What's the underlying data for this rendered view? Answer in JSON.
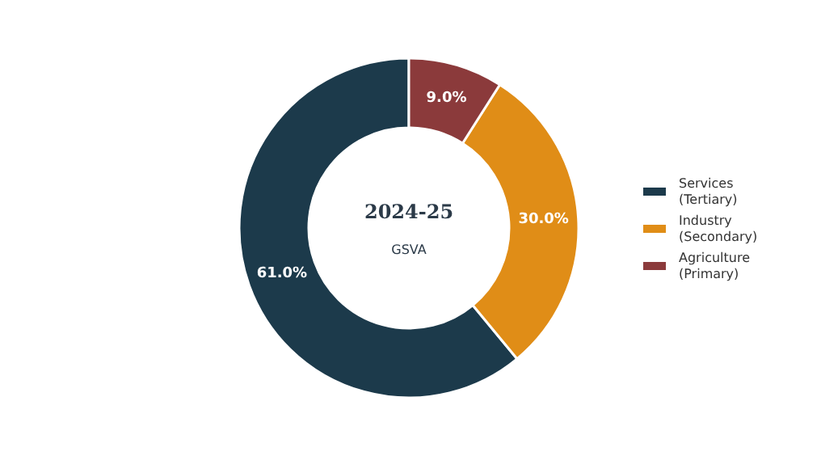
{
  "chart_data": {
    "type": "donut",
    "title": "2024-25",
    "subtitle": "GSVA",
    "categories": [
      "Services\n(Tertiary)",
      "Industry\n(Secondary)",
      "Agriculture\n(Primary)"
    ],
    "values": [
      61.0,
      30.0,
      9.0
    ],
    "colors": [
      "#1c3a4b",
      "#e08d17",
      "#8b3a3b"
    ],
    "value_labels": [
      "61.0%",
      "30.0%",
      "9.0%"
    ],
    "legend": "right"
  }
}
